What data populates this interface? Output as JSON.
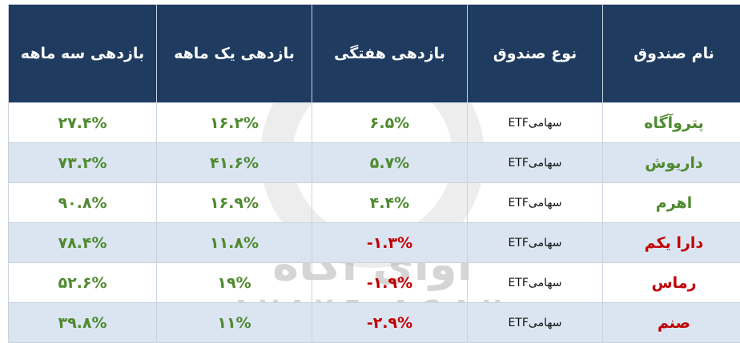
{
  "header_color": "#1f3b60",
  "positive_color": "#4e8a2f",
  "negative_color": "#c00000",
  "table": {
    "columns": [
      "نام  صندوق",
      "نوع صندوق",
      "بازدهی هفتگی",
      "بازدهی یک ماهه",
      "بازدهی سه ماهه"
    ],
    "rows": [
      {
        "sign": "positive",
        "cells": [
          "پتروآگاه",
          "سهامیETF",
          "۶.۵%",
          "۱۶.۲%",
          "۲۷.۴%"
        ]
      },
      {
        "sign": "positive",
        "cells": [
          "داریوش",
          "سهامیETF",
          "۵.۷%",
          "۴۱.۶%",
          "۷۳.۲%"
        ]
      },
      {
        "sign": "positive",
        "cells": [
          "اهرم",
          "سهامیETF",
          "۴.۴%",
          "۱۶.۹%",
          "۹۰.۸%"
        ]
      },
      {
        "sign": "negative",
        "cells": [
          "دارا  یکم",
          "سهامیETF",
          "-۱.۳%",
          "۱۱.۸%",
          "۷۸.۴%"
        ]
      },
      {
        "sign": "negative",
        "cells": [
          "رماس",
          "سهامیETF",
          "-۱.۹%",
          "۱۹%",
          "۵۲.۶%"
        ]
      },
      {
        "sign": "negative",
        "cells": [
          "صنم",
          "سهامیETF",
          "-۲.۹%",
          "۱۱%",
          "۳۹.۸%"
        ]
      }
    ]
  },
  "watermark": {
    "persian": "آوای آگاه",
    "latin": "AVAYE AGAH"
  }
}
